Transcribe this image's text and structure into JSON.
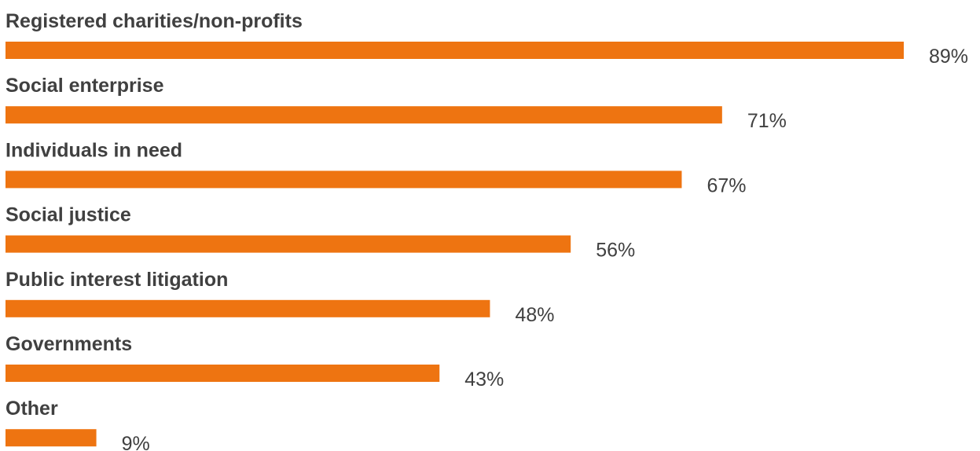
{
  "chart_data": {
    "type": "bar",
    "orientation": "horizontal",
    "title": "",
    "xlabel": "",
    "ylabel": "",
    "categories": [
      "Registered charities/non-profits",
      "Social enterprise",
      "Individuals in need",
      "Social justice",
      "Public interest litigation",
      "Governments",
      "Other"
    ],
    "values": [
      89,
      71,
      67,
      56,
      48,
      43,
      9
    ],
    "value_labels": [
      "89%",
      "71%",
      "67%",
      "56%",
      "48%",
      "43%",
      "9%"
    ],
    "unit": "%",
    "xlim": [
      0,
      89
    ],
    "grid": false,
    "legend": "none",
    "bar_color": "#EE7411",
    "text_color": "#404040"
  }
}
